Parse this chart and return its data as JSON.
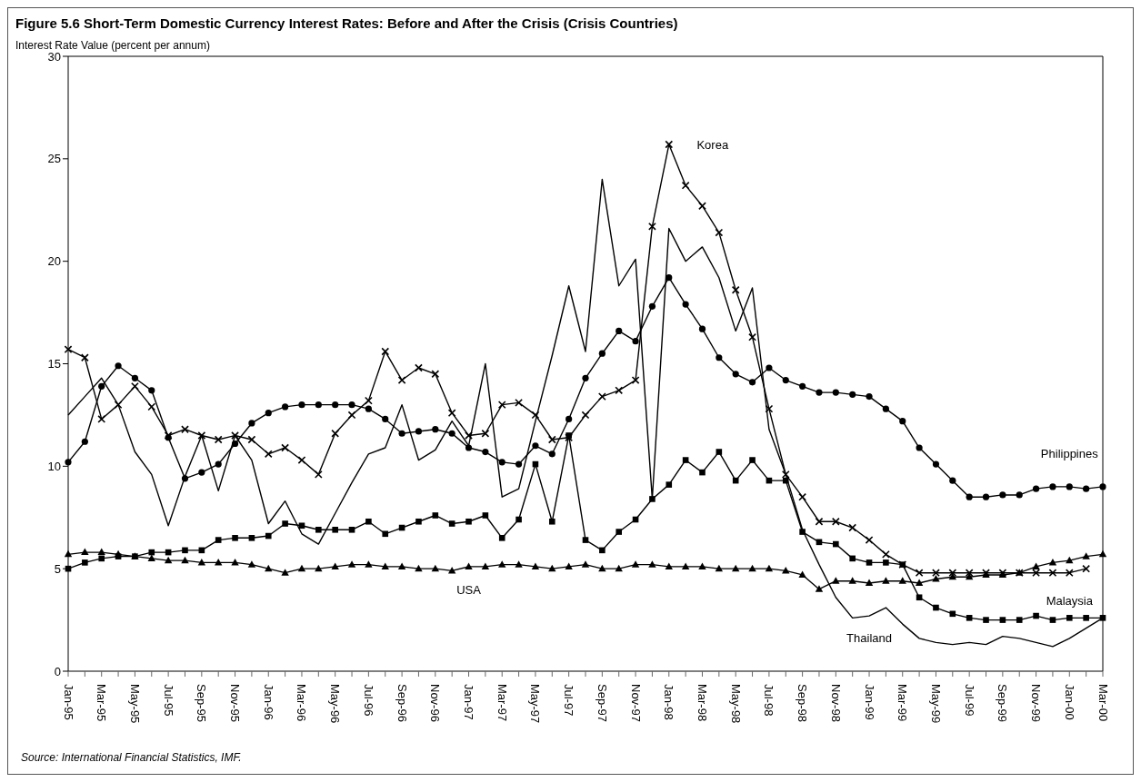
{
  "chart_data": {
    "type": "line",
    "title": "Figure 5.6  Short-Term Domestic Currency Interest Rates: Before and After the Crisis (Crisis Countries)",
    "ylabel": "Interest Rate Value (percent per annum)",
    "categories": [
      "Jan-95",
      null,
      "Mar-95",
      null,
      "May-95",
      null,
      "Jul-95",
      null,
      "Sep-95",
      null,
      "Nov-95",
      null,
      "Jan-96",
      null,
      "Mar-96",
      null,
      "May-96",
      null,
      "Jul-96",
      null,
      "Sep-96",
      null,
      "Nov-96",
      null,
      "Jan-97",
      null,
      "Mar-97",
      null,
      "May-97",
      null,
      "Jul-97",
      null,
      "Sep-97",
      null,
      "Nov-97",
      null,
      "Jan-98",
      null,
      "Mar-98",
      null,
      "May-98",
      null,
      "Jul-98",
      null,
      "Sep-98",
      null,
      "Nov-98",
      null,
      "Jan-99",
      null,
      "Mar-99",
      null,
      "May-99",
      null,
      "Jul-99",
      null,
      "Sep-99",
      null,
      "Nov-99",
      null,
      "Jan-00",
      null,
      "Mar-00"
    ],
    "ylim": [
      0,
      30
    ],
    "yticks": [
      0,
      5,
      10,
      15,
      20,
      25,
      30
    ],
    "grid": false,
    "legend": false,
    "series": [
      {
        "name": "Korea",
        "color": "#000000",
        "marker": "cross",
        "values": [
          15.7,
          15.3,
          12.3,
          13.0,
          13.9,
          12.9,
          11.5,
          11.8,
          11.5,
          11.3,
          11.5,
          11.3,
          10.6,
          10.9,
          10.3,
          9.6,
          11.6,
          12.5,
          13.2,
          15.6,
          14.2,
          14.8,
          14.5,
          12.6,
          11.5,
          11.6,
          13.0,
          13.1,
          12.5,
          11.3,
          11.4,
          12.5,
          13.4,
          13.7,
          14.2,
          21.7,
          25.7,
          23.7,
          22.7,
          21.4,
          18.6,
          16.3,
          12.8,
          9.6,
          8.5,
          7.3,
          7.3,
          7.0,
          6.4,
          5.7,
          5.2,
          4.8,
          4.8,
          4.8,
          4.8,
          4.8,
          4.8,
          4.8,
          4.8,
          4.8,
          4.8,
          5.0,
          null
        ]
      },
      {
        "name": "Philippines",
        "color": "#000000",
        "marker": "circle",
        "values": [
          10.2,
          11.2,
          13.9,
          14.9,
          14.3,
          13.7,
          11.4,
          9.4,
          9.7,
          10.1,
          11.1,
          12.1,
          12.6,
          12.9,
          13.0,
          13.0,
          13.0,
          13.0,
          12.8,
          12.3,
          11.6,
          11.7,
          11.8,
          11.6,
          10.9,
          10.7,
          10.2,
          10.1,
          11.0,
          10.6,
          12.3,
          14.3,
          15.5,
          16.6,
          16.1,
          17.8,
          19.2,
          17.9,
          16.7,
          15.3,
          14.5,
          14.1,
          14.8,
          14.2,
          13.9,
          13.6,
          13.6,
          13.5,
          13.4,
          12.8,
          12.2,
          10.9,
          10.1,
          9.3,
          8.5,
          8.5,
          8.6,
          8.6,
          8.9,
          9.0,
          9.0,
          8.9,
          9.0
        ]
      },
      {
        "name": "USA",
        "color": "#000000",
        "marker": "triangle",
        "values": [
          5.7,
          5.8,
          5.8,
          5.7,
          5.6,
          5.5,
          5.4,
          5.4,
          5.3,
          5.3,
          5.3,
          5.2,
          5.0,
          4.8,
          5.0,
          5.0,
          5.1,
          5.2,
          5.2,
          5.1,
          5.1,
          5.0,
          5.0,
          4.9,
          5.1,
          5.1,
          5.2,
          5.2,
          5.1,
          5.0,
          5.1,
          5.2,
          5.0,
          5.0,
          5.2,
          5.2,
          5.1,
          5.1,
          5.1,
          5.0,
          5.0,
          5.0,
          5.0,
          4.9,
          4.7,
          4.0,
          4.4,
          4.4,
          4.3,
          4.4,
          4.4,
          4.3,
          4.5,
          4.6,
          4.6,
          4.7,
          4.7,
          4.8,
          5.1,
          5.3,
          5.4,
          5.6,
          5.7
        ]
      },
      {
        "name": "Malaysia",
        "color": "#000000",
        "marker": "square",
        "values": [
          5.0,
          5.3,
          5.5,
          5.6,
          5.6,
          5.8,
          5.8,
          5.9,
          5.9,
          6.4,
          6.5,
          6.5,
          6.6,
          7.2,
          7.1,
          6.9,
          6.9,
          6.9,
          7.3,
          6.7,
          7.0,
          7.3,
          7.6,
          7.2,
          7.3,
          7.6,
          6.5,
          7.4,
          10.1,
          7.3,
          11.5,
          6.4,
          5.9,
          6.8,
          7.4,
          8.4,
          9.1,
          10.3,
          9.7,
          10.7,
          9.3,
          10.3,
          9.3,
          9.3,
          6.8,
          6.3,
          6.2,
          5.5,
          5.3,
          5.3,
          5.2,
          3.6,
          3.1,
          2.8,
          2.6,
          2.5,
          2.5,
          2.5,
          2.7,
          2.5,
          2.6,
          2.6,
          2.6
        ]
      },
      {
        "name": "Thailand",
        "color": "#000000",
        "marker": "none",
        "values": [
          12.5,
          13.4,
          14.3,
          13.0,
          10.7,
          9.6,
          7.1,
          9.5,
          11.5,
          8.8,
          11.5,
          10.3,
          7.2,
          8.3,
          6.7,
          6.2,
          7.7,
          9.2,
          10.6,
          10.9,
          13.0,
          10.3,
          10.8,
          12.2,
          11.0,
          15.0,
          8.5,
          8.9,
          12.2,
          15.4,
          18.8,
          15.6,
          24.0,
          18.8,
          20.1,
          8.4,
          21.6,
          20.0,
          20.7,
          19.2,
          16.6,
          18.7,
          11.8,
          9.6,
          6.9,
          5.2,
          3.6,
          2.6,
          2.7,
          3.1,
          2.3,
          1.6,
          1.4,
          1.3,
          1.4,
          1.3,
          1.7,
          1.6,
          1.4,
          1.2,
          1.6,
          2.1,
          2.6
        ]
      }
    ],
    "annotations": [
      "Source: International Financial Statistics, IMF."
    ]
  }
}
